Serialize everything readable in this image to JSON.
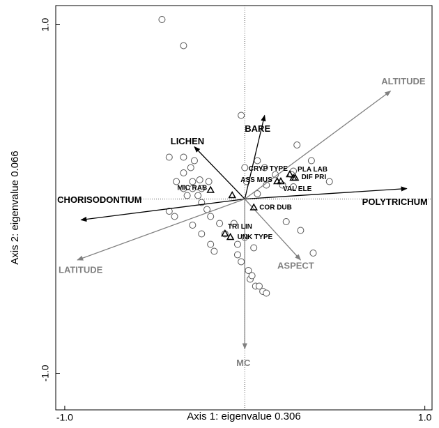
{
  "chart_data": {
    "type": "biplot",
    "x_label": "Axis 1: eigenvalue 0.306",
    "y_label": "Axis 2: eigenvalue 0.066",
    "xlim": [
      -1.05,
      1.04
    ],
    "ylim": [
      -1.21,
      1.11
    ],
    "xticks": [
      {
        "value": -1,
        "label": "-1.0"
      },
      {
        "value": 1,
        "label": "1.0"
      }
    ],
    "yticks": [
      {
        "value": -1,
        "label": "-1.0"
      },
      {
        "value": 1,
        "label": "1.0"
      }
    ],
    "sites": {
      "x": [
        -0.46,
        -0.34,
        -0.02,
        0.29,
        0.37,
        0.47,
        -0.42,
        -0.34,
        -0.28,
        -0.34,
        -0.3,
        -0.25,
        -0.29,
        -0.34,
        -0.38,
        -0.29,
        -0.24,
        -0.2,
        -0.26,
        -0.32,
        -0.24,
        -0.21,
        -0.19,
        -0.42,
        -0.39,
        -0.29,
        -0.24,
        -0.19,
        -0.17,
        -0.11,
        -0.06,
        -0.04,
        -0.04,
        -0.02,
        0.02,
        0.03,
        0.04,
        0.06,
        0.08,
        0.1,
        0.12,
        0.0,
        0.07,
        0.11,
        0.17,
        0.21,
        0.27,
        0.23,
        0.31,
        0.38,
        0.27,
        0.26,
        0.01,
        0.07,
        -0.14,
        0.0,
        0.05,
        0.12
      ],
      "y": [
        1.03,
        0.88,
        0.48,
        0.31,
        0.22,
        0.1,
        0.24,
        0.24,
        0.22,
        0.15,
        0.18,
        0.11,
        0.1,
        0.06,
        0.1,
        0.06,
        0.06,
        0.1,
        0.02,
        0.02,
        -0.02,
        -0.06,
        -0.1,
        -0.07,
        -0.1,
        -0.15,
        -0.2,
        -0.26,
        -0.3,
        -0.2,
        -0.14,
        -0.26,
        -0.32,
        -0.36,
        -0.41,
        -0.46,
        -0.44,
        -0.5,
        -0.5,
        -0.53,
        -0.54,
        0.18,
        0.22,
        0.18,
        0.14,
        0.08,
        0.16,
        -0.13,
        -0.18,
        -0.31,
        0.07,
        0.14,
        0.1,
        0.03,
        -0.14,
        -0.22,
        -0.28,
        0.08
      ]
    },
    "species": {
      "names": [
        "MIC RAB",
        null,
        "CRYP TYPE",
        "PLA LAB",
        "DIF PRI",
        "ASS MUS",
        "VAL ELE",
        "COR DUB",
        "TRI LIN",
        "UNK TYPE"
      ],
      "x": [
        -0.19,
        -0.07,
        0.25,
        0.27,
        0.28,
        0.18,
        0.2,
        0.05,
        -0.11,
        -0.08
      ],
      "y": [
        0.05,
        0.02,
        0.14,
        0.12,
        0.12,
        0.1,
        0.1,
        -0.05,
        -0.2,
        -0.22
      ]
    },
    "vectors": [
      {
        "name": "LICHEN",
        "color": "#000000",
        "x": -0.28,
        "y": 0.3
      },
      {
        "name": "BARE",
        "color": "#000000",
        "x": 0.11,
        "y": 0.48
      },
      {
        "name": "CHORISODONTIUM",
        "color": "#000000",
        "x": -0.91,
        "y": -0.12
      },
      {
        "name": "POLYTRICHUM",
        "color": "#000000",
        "x": 0.9,
        "y": 0.06
      },
      {
        "name": "ALTITUDE",
        "color": "#808080",
        "x": 0.81,
        "y": 0.62
      },
      {
        "name": "LATITUDE",
        "color": "#808080",
        "x": -0.93,
        "y": -0.35
      },
      {
        "name": "ASPECT",
        "color": "#808080",
        "x": 0.31,
        "y": -0.35
      },
      {
        "name": "MC",
        "color": "#808080",
        "x": 0.0,
        "y": -0.86
      }
    ]
  }
}
